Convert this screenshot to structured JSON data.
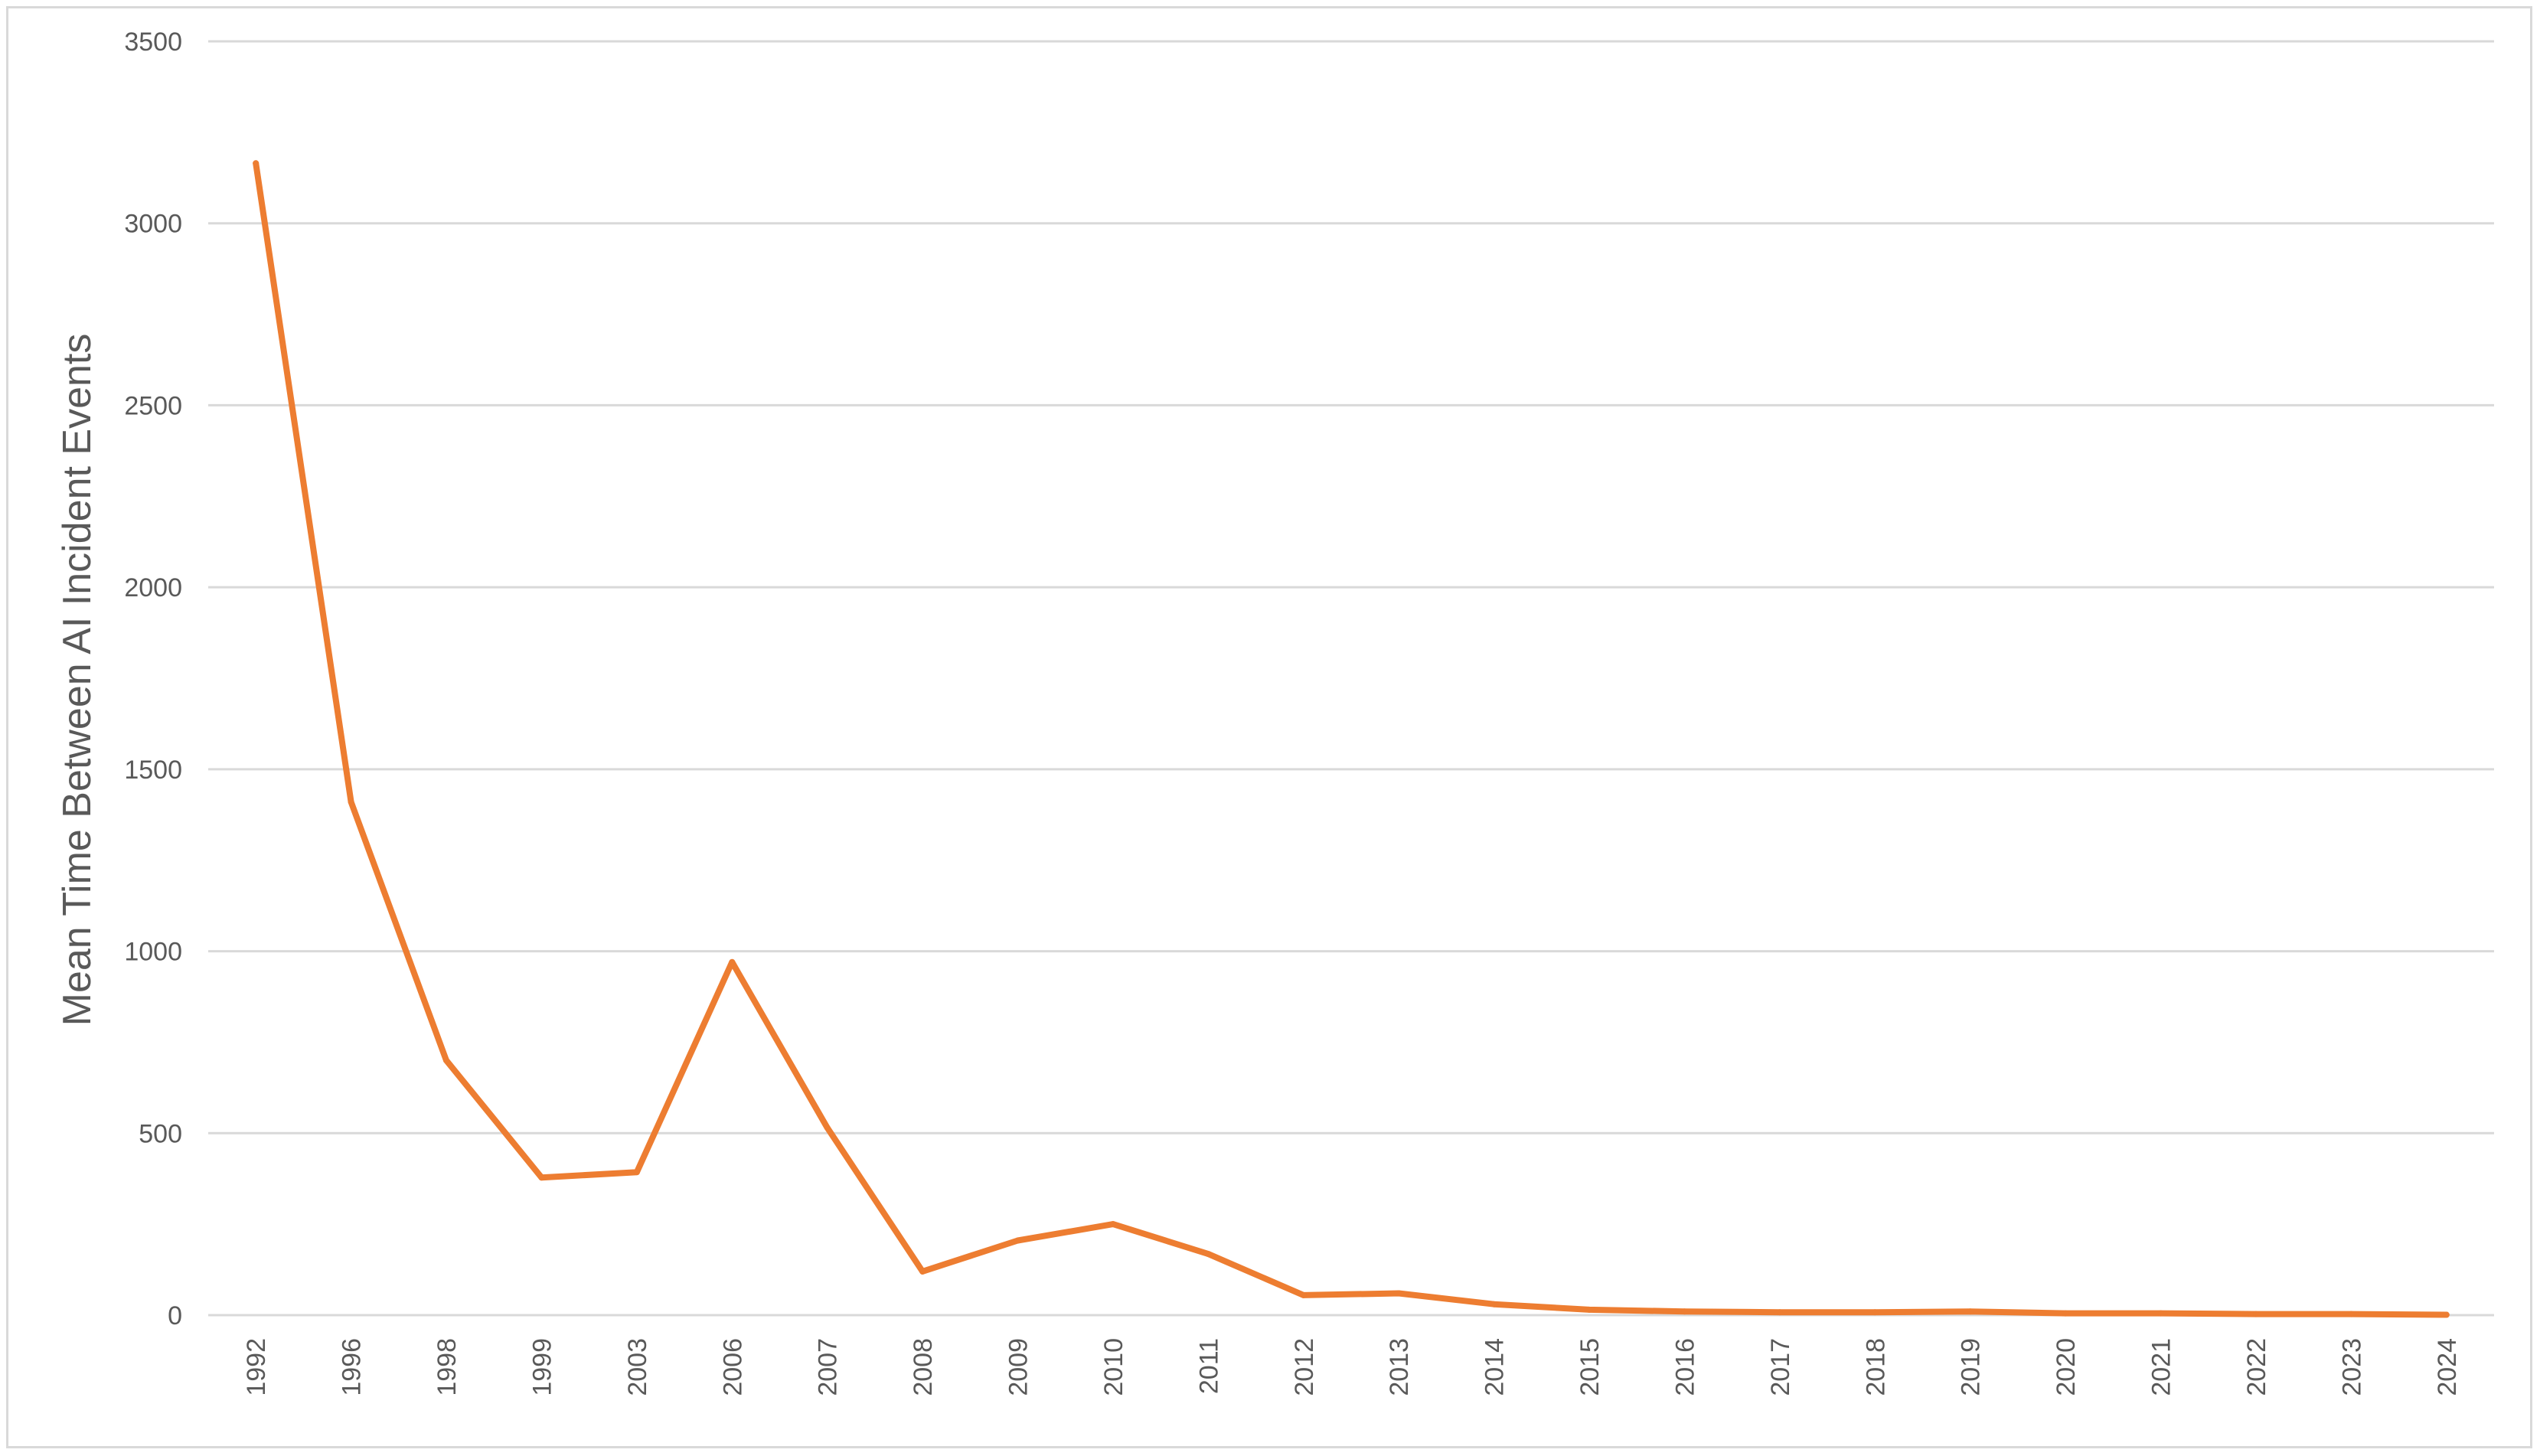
{
  "chart_data": {
    "type": "line",
    "title": "",
    "xlabel": "",
    "ylabel": "Mean Time Between AI Incident Events",
    "categories": [
      "1992",
      "1996",
      "1998",
      "1999",
      "2003",
      "2006",
      "2007",
      "2008",
      "2009",
      "2010",
      "2011",
      "2012",
      "2013",
      "2014",
      "2015",
      "2016",
      "2017",
      "2018",
      "2019",
      "2020",
      "2021",
      "2022",
      "2023",
      "2024"
    ],
    "series": [
      {
        "values": [
          3165,
          1410,
          700,
          378,
          393,
          970,
          515,
          120,
          205,
          250,
          168,
          55,
          60,
          30,
          15,
          10,
          8,
          8,
          10,
          5,
          5,
          3,
          3,
          1
        ]
      }
    ],
    "ylim": [
      0,
      3500
    ],
    "yticks": [
      0,
      500,
      1000,
      1500,
      2000,
      2500,
      3000,
      3500
    ],
    "grid": "horizontal",
    "legend": "none",
    "line_color": "#ed7d31",
    "grid_color": "#d9d9d9",
    "text_color": "#595959"
  }
}
